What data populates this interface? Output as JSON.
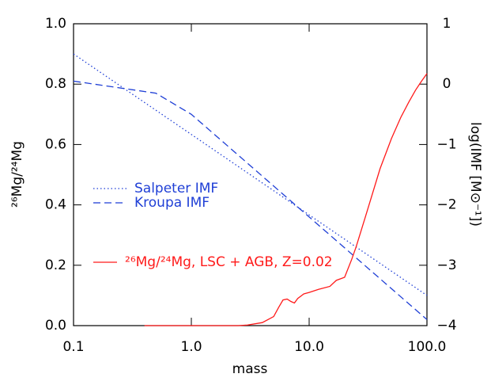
{
  "chart_data": {
    "type": "line",
    "xlabel": "mass",
    "ylabel": "²⁶Mg/²⁴Mg",
    "y2label": "log(IMF [M⊙⁻¹])",
    "xscale": "log",
    "xlim": [
      0.1,
      100
    ],
    "xticks": [
      0.1,
      {
        "value": 1,
        "label": "1.0"
      },
      {
        "value": 10,
        "label": "10.0"
      },
      {
        "value": 100,
        "label": "100.0"
      }
    ],
    "ylim": [
      0,
      1
    ],
    "yticks": [
      {
        "value": 0,
        "label": "0.0"
      },
      0.2,
      0.4,
      0.6,
      0.8,
      {
        "value": 1,
        "label": "1.0"
      }
    ],
    "y2lim": [
      -4,
      1
    ],
    "y2ticks": [
      {
        "value": -4,
        "label": "−4"
      },
      {
        "value": -3,
        "label": "−3"
      },
      {
        "value": -2,
        "label": "−2"
      },
      {
        "value": -1,
        "label": "−1"
      },
      0,
      1
    ],
    "series": [
      {
        "name": "Salpeter IMF",
        "color": "#1f3fd6",
        "dash": "dotted",
        "axis": "y2",
        "x": [
          0.1,
          100
        ],
        "values": [
          0.5,
          -3.5
        ]
      },
      {
        "name": "Kroupa IMF",
        "color": "#1f3fd6",
        "dash": "dashed",
        "axis": "y2",
        "x": [
          0.1,
          0.5,
          1,
          100
        ],
        "values": [
          0.05,
          -0.15,
          -0.5,
          -3.9
        ]
      },
      {
        "name": "²⁶Mg/²⁴Mg, LSC + AGB, Z=0.02",
        "color": "#ff1a1a",
        "dash": "solid",
        "axis": "y",
        "x": [
          0.4,
          2.5,
          3,
          4,
          5,
          5.5,
          6,
          6.5,
          7,
          7.5,
          8,
          9,
          10,
          12,
          15,
          17,
          20,
          23,
          25,
          30,
          40,
          50,
          60,
          70,
          80,
          90,
          100
        ],
        "values": [
          0,
          0,
          0.002,
          0.01,
          0.03,
          0.06,
          0.085,
          0.088,
          0.08,
          0.075,
          0.09,
          0.105,
          0.11,
          0.12,
          0.13,
          0.15,
          0.16,
          0.22,
          0.26,
          0.36,
          0.52,
          0.62,
          0.69,
          0.74,
          0.78,
          0.81,
          0.835
        ]
      }
    ]
  }
}
